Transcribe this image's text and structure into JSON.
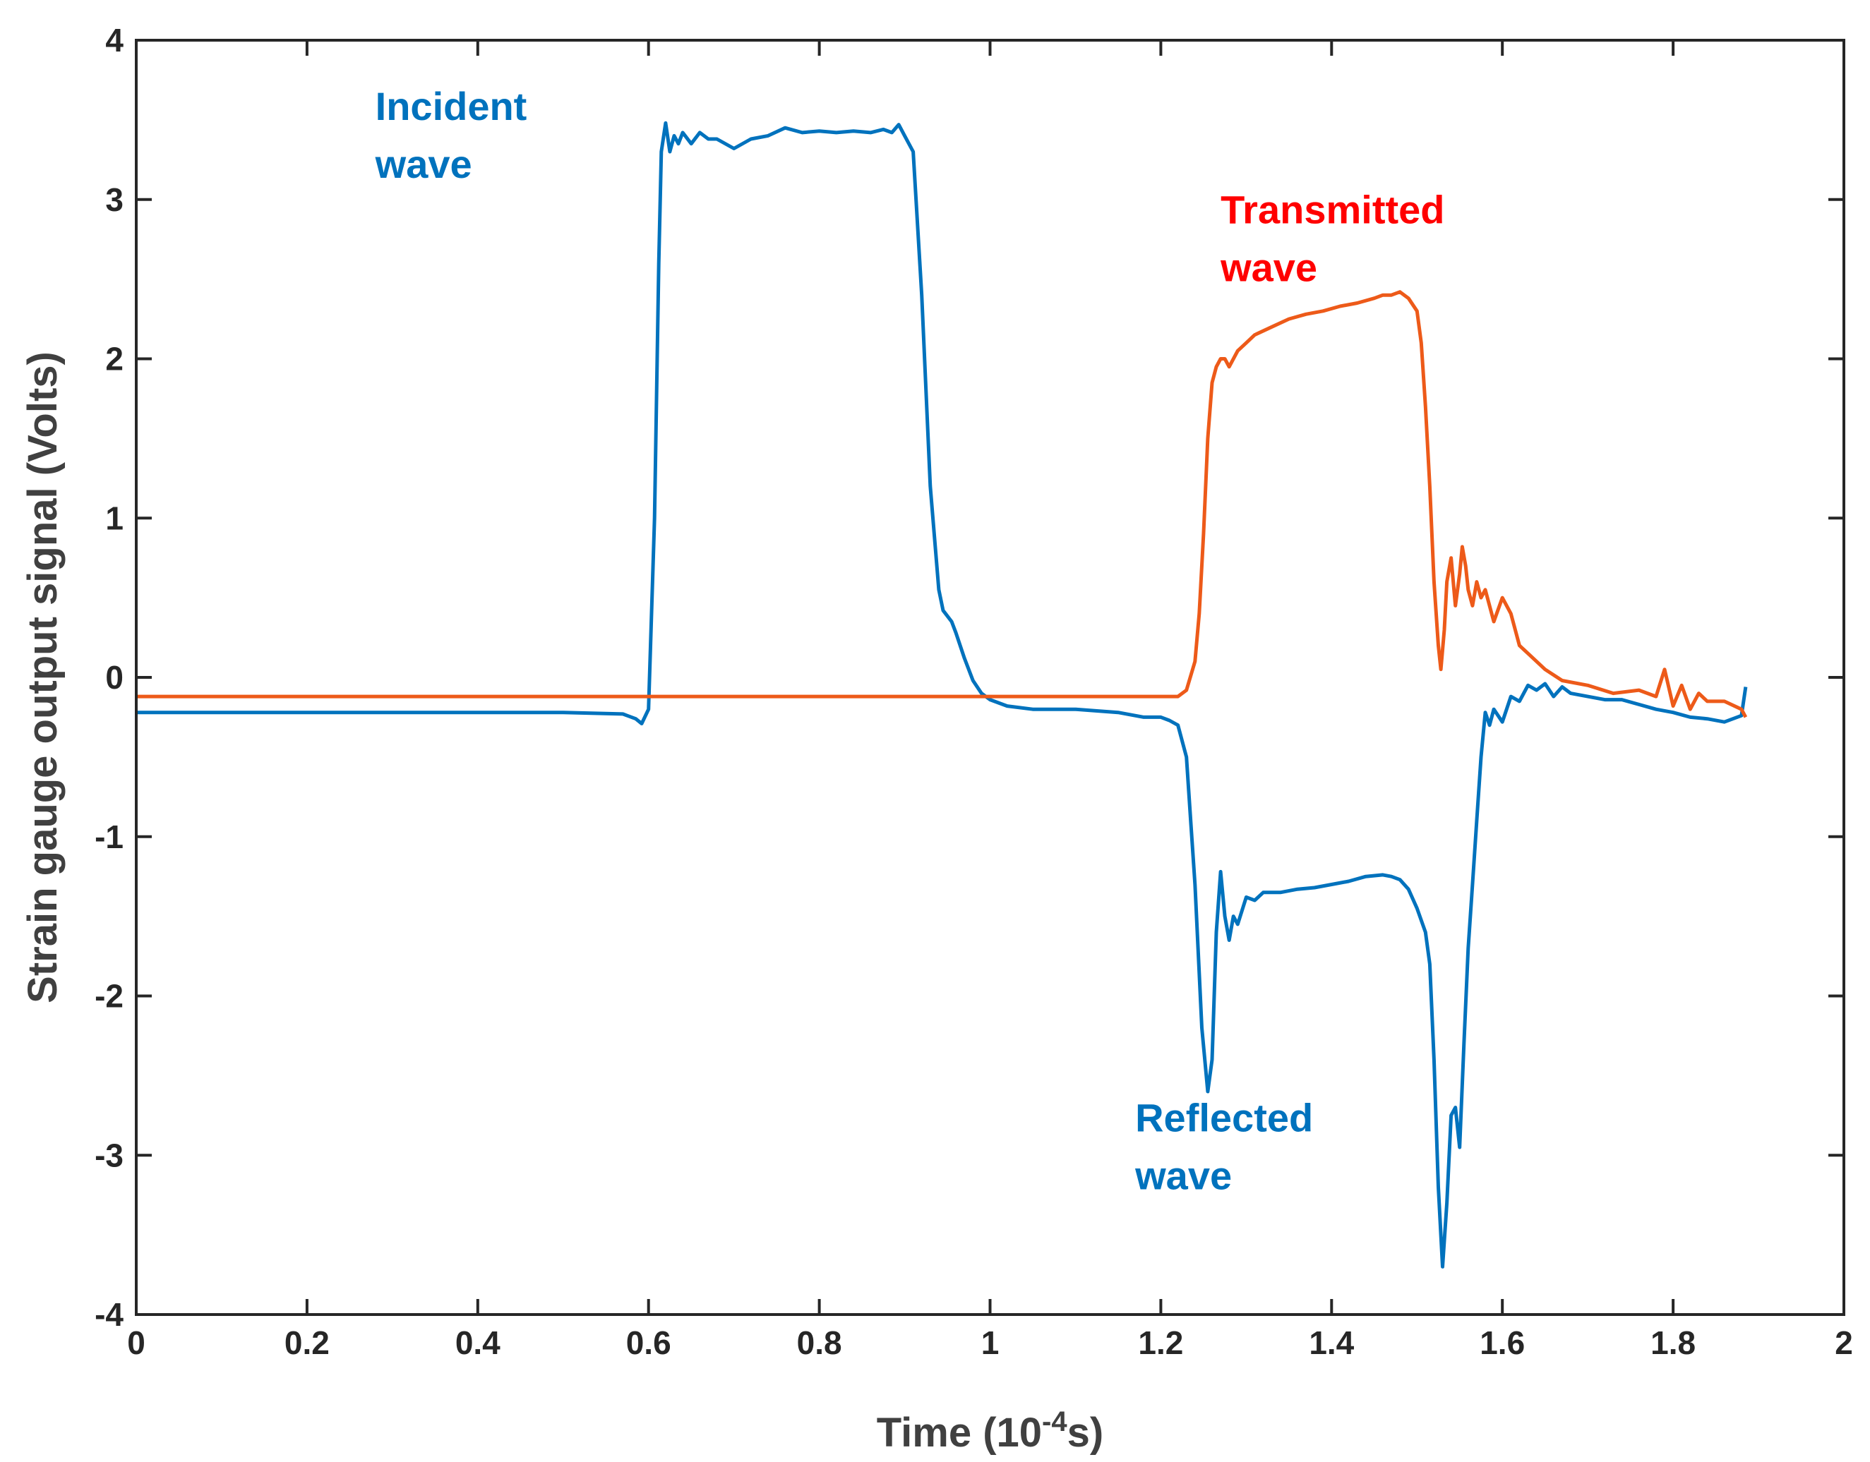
{
  "chart_data": {
    "type": "line",
    "title": "",
    "xlabel": "Time (10",
    "xlabel_sup": "-4",
    "xlabel_suffix": "s)",
    "ylabel": "Strain gauge output signal (Volts)",
    "xlim": [
      0,
      2
    ],
    "ylim": [
      -4,
      4
    ],
    "grid": false,
    "x_ticks": [
      {
        "value": 0,
        "label": "0"
      },
      {
        "value": 0.2,
        "label": "0.2"
      },
      {
        "value": 0.4,
        "label": "0.4"
      },
      {
        "value": 0.6,
        "label": "0.6"
      },
      {
        "value": 0.8,
        "label": "0.8"
      },
      {
        "value": 1,
        "label": "1"
      },
      {
        "value": 1.2,
        "label": "1.2"
      },
      {
        "value": 1.4,
        "label": "1.4"
      },
      {
        "value": 1.6,
        "label": "1.6"
      },
      {
        "value": 1.8,
        "label": "1.8"
      },
      {
        "value": 2,
        "label": "2"
      }
    ],
    "y_ticks": [
      {
        "value": -4,
        "label": "-4"
      },
      {
        "value": -3,
        "label": "-3"
      },
      {
        "value": -2,
        "label": "-2"
      },
      {
        "value": -1,
        "label": "-1"
      },
      {
        "value": 0,
        "label": "0"
      },
      {
        "value": 1,
        "label": "1"
      },
      {
        "value": 2,
        "label": "2"
      },
      {
        "value": 3,
        "label": "3"
      },
      {
        "value": 4,
        "label": "4"
      }
    ],
    "series": [
      {
        "name": "Incident / Reflected wave",
        "color": "#0072BD",
        "x": [
          0,
          0.5,
          0.57,
          0.585,
          0.592,
          0.6,
          0.607,
          0.612,
          0.615,
          0.62,
          0.625,
          0.63,
          0.635,
          0.64,
          0.65,
          0.66,
          0.67,
          0.68,
          0.7,
          0.72,
          0.74,
          0.76,
          0.78,
          0.8,
          0.82,
          0.84,
          0.86,
          0.875,
          0.885,
          0.893,
          0.9,
          0.91,
          0.92,
          0.93,
          0.94,
          0.945,
          0.955,
          0.96,
          0.97,
          0.98,
          0.99,
          1.0,
          1.02,
          1.05,
          1.1,
          1.15,
          1.18,
          1.2,
          1.21,
          1.22,
          1.23,
          1.235,
          1.24,
          1.248,
          1.255,
          1.26,
          1.265,
          1.27,
          1.275,
          1.28,
          1.285,
          1.29,
          1.3,
          1.31,
          1.32,
          1.34,
          1.36,
          1.38,
          1.4,
          1.42,
          1.44,
          1.46,
          1.47,
          1.48,
          1.49,
          1.5,
          1.51,
          1.515,
          1.52,
          1.525,
          1.53,
          1.535,
          1.54,
          1.545,
          1.55,
          1.555,
          1.56,
          1.565,
          1.57,
          1.575,
          1.58,
          1.585,
          1.59,
          1.6,
          1.61,
          1.62,
          1.63,
          1.64,
          1.65,
          1.66,
          1.67,
          1.68,
          1.7,
          1.72,
          1.74,
          1.76,
          1.78,
          1.8,
          1.82,
          1.84,
          1.86,
          1.87,
          1.88,
          1.885
        ],
        "y": [
          -0.22,
          -0.22,
          -0.23,
          -0.26,
          -0.29,
          -0.2,
          1.0,
          2.6,
          3.3,
          3.48,
          3.3,
          3.4,
          3.35,
          3.42,
          3.35,
          3.42,
          3.38,
          3.38,
          3.32,
          3.38,
          3.4,
          3.45,
          3.42,
          3.43,
          3.42,
          3.43,
          3.42,
          3.44,
          3.42,
          3.47,
          3.4,
          3.3,
          2.4,
          1.2,
          0.55,
          0.42,
          0.35,
          0.28,
          0.12,
          -0.02,
          -0.1,
          -0.14,
          -0.18,
          -0.2,
          -0.2,
          -0.22,
          -0.25,
          -0.25,
          -0.27,
          -0.3,
          -0.5,
          -0.9,
          -1.3,
          -2.2,
          -2.6,
          -2.4,
          -1.6,
          -1.22,
          -1.5,
          -1.65,
          -1.5,
          -1.55,
          -1.38,
          -1.4,
          -1.35,
          -1.35,
          -1.33,
          -1.32,
          -1.3,
          -1.28,
          -1.25,
          -1.24,
          -1.25,
          -1.27,
          -1.33,
          -1.45,
          -1.6,
          -1.8,
          -2.4,
          -3.2,
          -3.7,
          -3.3,
          -2.75,
          -2.7,
          -2.95,
          -2.3,
          -1.7,
          -1.3,
          -0.9,
          -0.5,
          -0.22,
          -0.3,
          -0.2,
          -0.28,
          -0.12,
          -0.15,
          -0.05,
          -0.08,
          -0.04,
          -0.12,
          -0.06,
          -0.1,
          -0.12,
          -0.14,
          -0.14,
          -0.17,
          -0.2,
          -0.22,
          -0.25,
          -0.26,
          -0.28,
          -0.26,
          -0.24,
          -0.06
        ]
      },
      {
        "name": "Transmitted wave",
        "color": "#ED5A19",
        "x": [
          0,
          0.3,
          0.6,
          0.9,
          1.1,
          1.2,
          1.22,
          1.23,
          1.24,
          1.245,
          1.25,
          1.255,
          1.26,
          1.265,
          1.27,
          1.275,
          1.28,
          1.29,
          1.3,
          1.31,
          1.33,
          1.35,
          1.37,
          1.39,
          1.41,
          1.43,
          1.45,
          1.46,
          1.47,
          1.48,
          1.49,
          1.5,
          1.505,
          1.51,
          1.515,
          1.52,
          1.525,
          1.528,
          1.532,
          1.535,
          1.54,
          1.545,
          1.55,
          1.553,
          1.557,
          1.56,
          1.565,
          1.57,
          1.575,
          1.58,
          1.59,
          1.6,
          1.61,
          1.62,
          1.63,
          1.65,
          1.67,
          1.7,
          1.73,
          1.76,
          1.78,
          1.79,
          1.8,
          1.81,
          1.82,
          1.83,
          1.84,
          1.86,
          1.88,
          1.885
        ],
        "y": [
          -0.12,
          -0.12,
          -0.12,
          -0.12,
          -0.12,
          -0.12,
          -0.12,
          -0.08,
          0.1,
          0.4,
          0.9,
          1.5,
          1.85,
          1.95,
          2.0,
          2.0,
          1.95,
          2.05,
          2.1,
          2.15,
          2.2,
          2.25,
          2.28,
          2.3,
          2.33,
          2.35,
          2.38,
          2.4,
          2.4,
          2.42,
          2.38,
          2.3,
          2.1,
          1.7,
          1.2,
          0.6,
          0.2,
          0.05,
          0.3,
          0.6,
          0.75,
          0.45,
          0.65,
          0.82,
          0.7,
          0.55,
          0.45,
          0.6,
          0.5,
          0.55,
          0.35,
          0.5,
          0.4,
          0.2,
          0.15,
          0.05,
          -0.02,
          -0.05,
          -0.1,
          -0.08,
          -0.12,
          0.05,
          -0.18,
          -0.05,
          -0.2,
          -0.1,
          -0.15,
          -0.15,
          -0.2,
          -0.25
        ]
      }
    ],
    "annotations": [
      {
        "lines": [
          "Incident",
          "wave"
        ],
        "color": "#0072BD",
        "x": 0.28,
        "y": 3.5
      },
      {
        "lines": [
          "Transmitted",
          "wave"
        ],
        "color": "#FF0000",
        "x": 1.27,
        "y": 2.85
      },
      {
        "lines": [
          "Reflected",
          "wave"
        ],
        "color": "#0072BD",
        "x": 1.17,
        "y": -2.85
      }
    ]
  }
}
